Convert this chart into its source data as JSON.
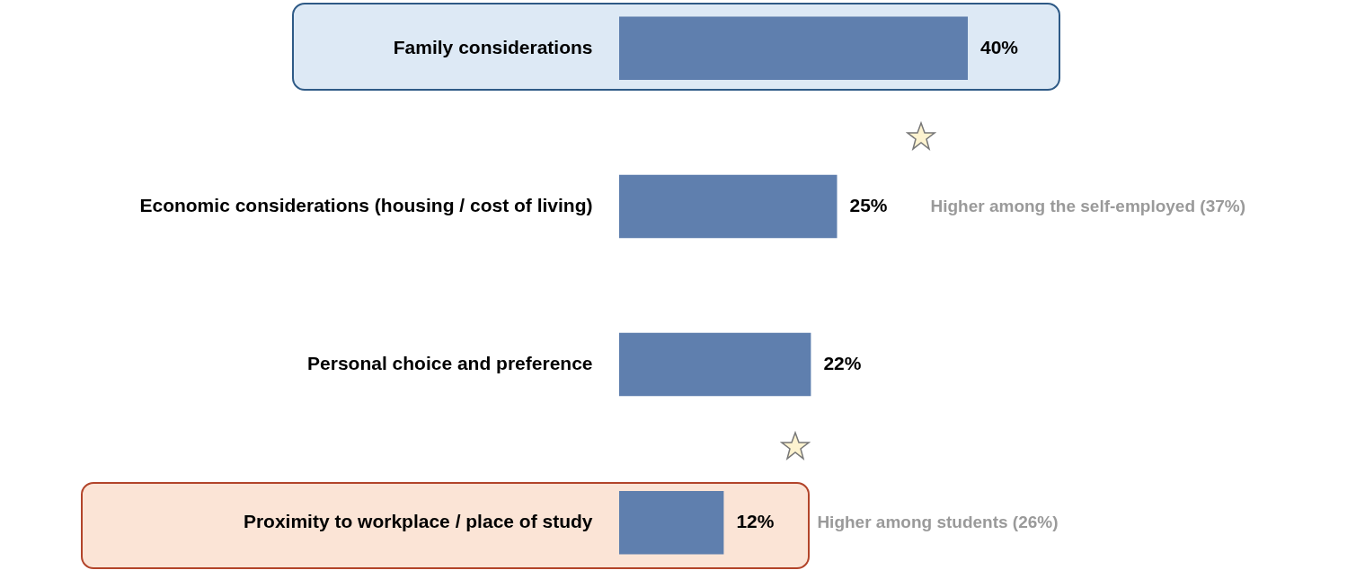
{
  "chart_data": {
    "type": "bar",
    "orientation": "horizontal",
    "categories": [
      "Family considerations",
      "Economic considerations (housing / cost of living)",
      "Personal choice and preference",
      "Proximity to workplace / place of study"
    ],
    "values": [
      40,
      25,
      22,
      12
    ],
    "value_labels": [
      "40%",
      "25%",
      "22%",
      "12%"
    ],
    "color": "#5f7fae",
    "annotations": [
      "Higher among the self-employed (37%)",
      "Higher among students (26%)"
    ]
  }
}
